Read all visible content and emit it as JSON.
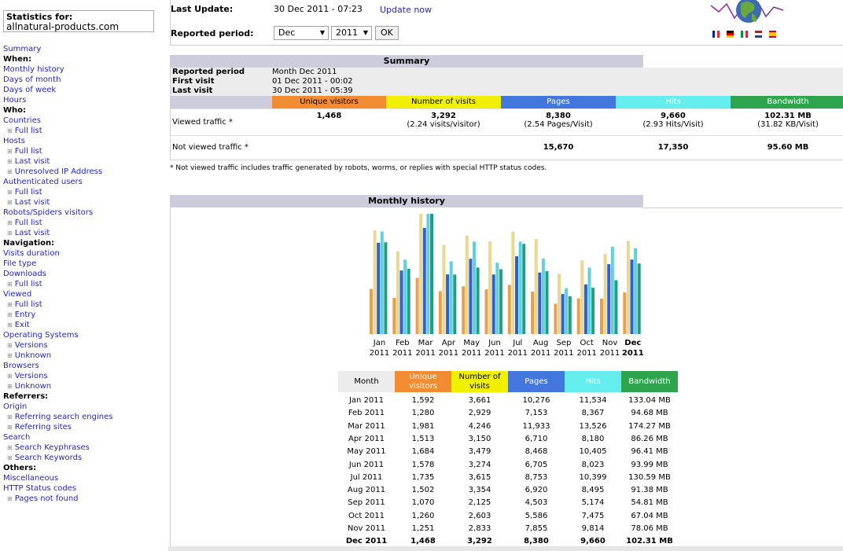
{
  "sidebar": {
    "stats_label": "Statistics for:",
    "site": "allnatural-products.com",
    "items": [
      {
        "t": "Summary",
        "k": "link"
      },
      {
        "t": "When:",
        "k": "sec"
      },
      {
        "t": "Monthly history",
        "k": "link"
      },
      {
        "t": "Days of month",
        "k": "link"
      },
      {
        "t": "Days of week",
        "k": "link"
      },
      {
        "t": "Hours",
        "k": "link"
      },
      {
        "t": "Who:",
        "k": "sec"
      },
      {
        "t": "Countries",
        "k": "link"
      },
      {
        "t": "Full list",
        "k": "sub"
      },
      {
        "t": "Hosts",
        "k": "link"
      },
      {
        "t": "Full list",
        "k": "sub"
      },
      {
        "t": "Last visit",
        "k": "sub"
      },
      {
        "t": "Unresolved IP Address",
        "k": "sub"
      },
      {
        "t": "Authenticated users",
        "k": "link"
      },
      {
        "t": "Full list",
        "k": "sub"
      },
      {
        "t": "Last visit",
        "k": "sub"
      },
      {
        "t": "Robots/Spiders visitors",
        "k": "link"
      },
      {
        "t": "Full list",
        "k": "sub"
      },
      {
        "t": "Last visit",
        "k": "sub"
      },
      {
        "t": "Navigation:",
        "k": "sec"
      },
      {
        "t": "Visits duration",
        "k": "link"
      },
      {
        "t": "File type",
        "k": "link"
      },
      {
        "t": "Downloads",
        "k": "link"
      },
      {
        "t": "Full list",
        "k": "sub"
      },
      {
        "t": "Viewed",
        "k": "link"
      },
      {
        "t": "Full list",
        "k": "sub"
      },
      {
        "t": "Entry",
        "k": "sub"
      },
      {
        "t": "Exit",
        "k": "sub"
      },
      {
        "t": "Operating Systems",
        "k": "link"
      },
      {
        "t": "Versions",
        "k": "sub"
      },
      {
        "t": "Unknown",
        "k": "sub"
      },
      {
        "t": "Browsers",
        "k": "link"
      },
      {
        "t": "Versions",
        "k": "sub"
      },
      {
        "t": "Unknown",
        "k": "sub"
      },
      {
        "t": "Referrers:",
        "k": "sec"
      },
      {
        "t": "Origin",
        "k": "link"
      },
      {
        "t": "Referring search engines",
        "k": "sub"
      },
      {
        "t": "Referring sites",
        "k": "sub"
      },
      {
        "t": "Search",
        "k": "link"
      },
      {
        "t": "Search Keyphrases",
        "k": "sub"
      },
      {
        "t": "Search Keywords",
        "k": "sub"
      },
      {
        "t": "Others:",
        "k": "sec"
      },
      {
        "t": "Miscellaneous",
        "k": "link"
      },
      {
        "t": "HTTP Status codes",
        "k": "link"
      },
      {
        "t": "Pages not found",
        "k": "sub"
      }
    ]
  },
  "header": {
    "last_update_label": "Last Update:",
    "last_update_value": "30 Dec 2011 - 07:23",
    "update_now": "Update now",
    "period_label": "Reported period:",
    "month_select": "Dec",
    "year_select": "2011",
    "ok": "OK"
  },
  "summary": {
    "title": "Summary",
    "period_label": "Reported period",
    "period_value": "Month Dec 2011",
    "first_visit_label": "First visit",
    "first_visit_value": "01 Dec 2011 - 00:02",
    "last_visit_label": "Last visit",
    "last_visit_value": "30 Dec 2011 - 05:39",
    "headers": [
      "Unique visitors",
      "Number of visits",
      "Pages",
      "Hits",
      "Bandwidth"
    ],
    "viewed_label": "Viewed traffic *",
    "viewed": [
      "1,468",
      "3,292",
      "8,380",
      "9,660",
      "102.31 MB"
    ],
    "viewed_sub": [
      "",
      "(2.24 visits/visitor)",
      "(2.54 Pages/Visit)",
      "(2.93 Hits/Visit)",
      "(31.82 KB/Visit)"
    ],
    "notviewed_label": "Not viewed traffic *",
    "notviewed": [
      "",
      "",
      "15,670",
      "17,350",
      "95.60 MB"
    ],
    "note": "* Not viewed traffic includes traffic generated by robots, worms, or replies with special HTTP status codes."
  },
  "history": {
    "title": "Monthly history",
    "headers": [
      "Month",
      "Unique visitors",
      "Number of visits",
      "Pages",
      "Hits",
      "Bandwidth"
    ],
    "rows": [
      [
        "Jan 2011",
        "1,592",
        "3,661",
        "10,276",
        "11,534",
        "133.04 MB"
      ],
      [
        "Feb 2011",
        "1,280",
        "2,929",
        "7,153",
        "8,367",
        "94.68 MB"
      ],
      [
        "Mar 2011",
        "1,981",
        "4,246",
        "11,933",
        "13,526",
        "174.27 MB"
      ],
      [
        "Apr 2011",
        "1,513",
        "3,150",
        "6,710",
        "8,180",
        "86.26 MB"
      ],
      [
        "May 2011",
        "1,684",
        "3,479",
        "8,468",
        "10,405",
        "96.41 MB"
      ],
      [
        "Jun 2011",
        "1,578",
        "3,274",
        "6,705",
        "8,023",
        "93.99 MB"
      ],
      [
        "Jul 2011",
        "1,735",
        "3,615",
        "8,753",
        "10,399",
        "130.59 MB"
      ],
      [
        "Aug 2011",
        "1,502",
        "3,354",
        "6,920",
        "8,495",
        "91.38 MB"
      ],
      [
        "Sep 2011",
        "1,070",
        "2,125",
        "4,503",
        "5,174",
        "54.81 MB"
      ],
      [
        "Oct 2011",
        "1,260",
        "2,603",
        "5,586",
        "7,475",
        "67.04 MB"
      ],
      [
        "Nov 2011",
        "1,251",
        "2,833",
        "7,855",
        "9,814",
        "78.06 MB"
      ],
      [
        "Dec 2011",
        "1,468",
        "3,292",
        "8,380",
        "9,660",
        "102.31 MB"
      ]
    ]
  },
  "colors": {
    "unique": "#f28c33",
    "visits": "#f0f000",
    "pages": "#4477dd",
    "hits": "#66eeee",
    "bandwidth": "#2ea44f",
    "bar_unique": "#e8a050",
    "bar_visits": "#e8d890",
    "bar_pages": "#3060d0",
    "bar_hits": "#60d0e0",
    "bar_bandwidth": "#20a080"
  },
  "chart_data": {
    "type": "bar",
    "categories": [
      "Jan 2011",
      "Feb 2011",
      "Mar 2011",
      "Apr 2011",
      "May 2011",
      "Jun 2011",
      "Jul 2011",
      "Aug 2011",
      "Sep 2011",
      "Oct 2011",
      "Nov 2011",
      "Dec 2011"
    ],
    "series": [
      {
        "name": "Unique visitors",
        "values": [
          1592,
          1280,
          1981,
          1513,
          1684,
          1578,
          1735,
          1502,
          1070,
          1260,
          1251,
          1468
        ]
      },
      {
        "name": "Number of visits",
        "values": [
          3661,
          2929,
          4246,
          3150,
          3479,
          3274,
          3615,
          3354,
          2125,
          2603,
          2833,
          3292
        ]
      },
      {
        "name": "Pages",
        "values": [
          10276,
          7153,
          11933,
          6710,
          8468,
          6705,
          8753,
          6920,
          4503,
          5586,
          7855,
          8380
        ]
      },
      {
        "name": "Hits",
        "values": [
          11534,
          8367,
          13526,
          8180,
          10405,
          8023,
          10399,
          8495,
          5174,
          7475,
          9814,
          9660
        ]
      },
      {
        "name": "Bandwidth",
        "values": [
          133.04,
          94.68,
          174.27,
          86.26,
          96.41,
          93.99,
          130.59,
          91.38,
          54.81,
          67.04,
          78.06,
          102.31
        ]
      }
    ],
    "month_labels": [
      "Jan",
      "Feb",
      "Mar",
      "Apr",
      "May",
      "Jun",
      "Jul",
      "Aug",
      "Sep",
      "Oct",
      "Nov",
      "Dec"
    ],
    "year_labels": [
      "2011",
      "2011",
      "2011",
      "2011",
      "2011",
      "2011",
      "2011",
      "2011",
      "2011",
      "2011",
      "2011",
      "2011"
    ]
  }
}
